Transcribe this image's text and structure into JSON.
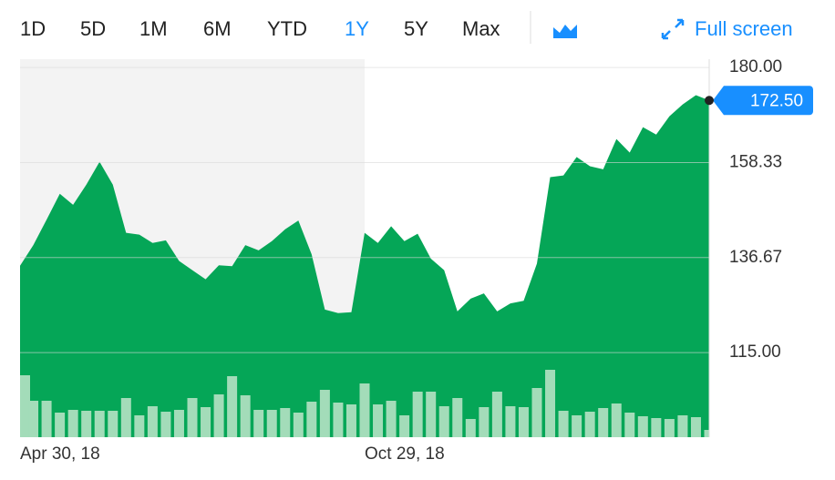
{
  "toolbar": {
    "ranges": [
      "1D",
      "5D",
      "1M",
      "6M",
      "YTD",
      "1Y",
      "5Y",
      "Max"
    ],
    "active": 5,
    "fullscreen": "Full screen"
  },
  "chart_data": {
    "type": "area",
    "categories": [
      "Apr 30, 18",
      null,
      null,
      null,
      null,
      null,
      null,
      null,
      null,
      null,
      null,
      null,
      null,
      null,
      null,
      null,
      null,
      null,
      null,
      null,
      null,
      null,
      null,
      null,
      null,
      null,
      "Oct 29, 18",
      null,
      null,
      null,
      null,
      null,
      null,
      null,
      null,
      null,
      null,
      null,
      null,
      null,
      null,
      null,
      null,
      null,
      null,
      null,
      null,
      null,
      null,
      null,
      null,
      null,
      null
    ],
    "values": [
      134.8,
      139.5,
      145.3,
      151.2,
      148.7,
      153.3,
      158.5,
      153.3,
      142.3,
      141.9,
      140.0,
      140.6,
      135.9,
      133.8,
      131.7,
      134.9,
      134.7,
      139.5,
      138.3,
      140.4,
      143.1,
      145.1,
      137.4,
      124.8,
      124.0,
      124.2,
      142.3,
      140.0,
      143.8,
      140.4,
      142.1,
      136.4,
      133.8,
      124.4,
      127.3,
      128.5,
      124.4,
      126.2,
      126.8,
      135.3,
      155.0,
      155.4,
      159.6,
      157.5,
      156.8,
      163.7,
      160.6,
      166.4,
      164.7,
      168.9,
      171.6,
      173.7,
      172.5
    ],
    "color": "#05a657",
    "volume": [
      68,
      40,
      40,
      27,
      30,
      29,
      29,
      29,
      43,
      24,
      34,
      28,
      30,
      43,
      33,
      47,
      67,
      46,
      30,
      30,
      32,
      27,
      39,
      52,
      38,
      36,
      59,
      36,
      40,
      24,
      50,
      50,
      34,
      43,
      20,
      33,
      50,
      34,
      33,
      54,
      74,
      29,
      24,
      28,
      32,
      37,
      27,
      23,
      21,
      20,
      24,
      22,
      8
    ],
    "volume_color": "#a3dcb9",
    "last_value_label": "172.50",
    "ylim": [
      95.7,
      181.9
    ],
    "yticks": [
      {
        "value": 115,
        "label": "115.00"
      },
      {
        "value": 136.67,
        "label": "136.67"
      },
      {
        "value": 158.33,
        "label": "158.33"
      },
      {
        "value": 180,
        "label": "180.00"
      }
    ],
    "grid": true
  }
}
